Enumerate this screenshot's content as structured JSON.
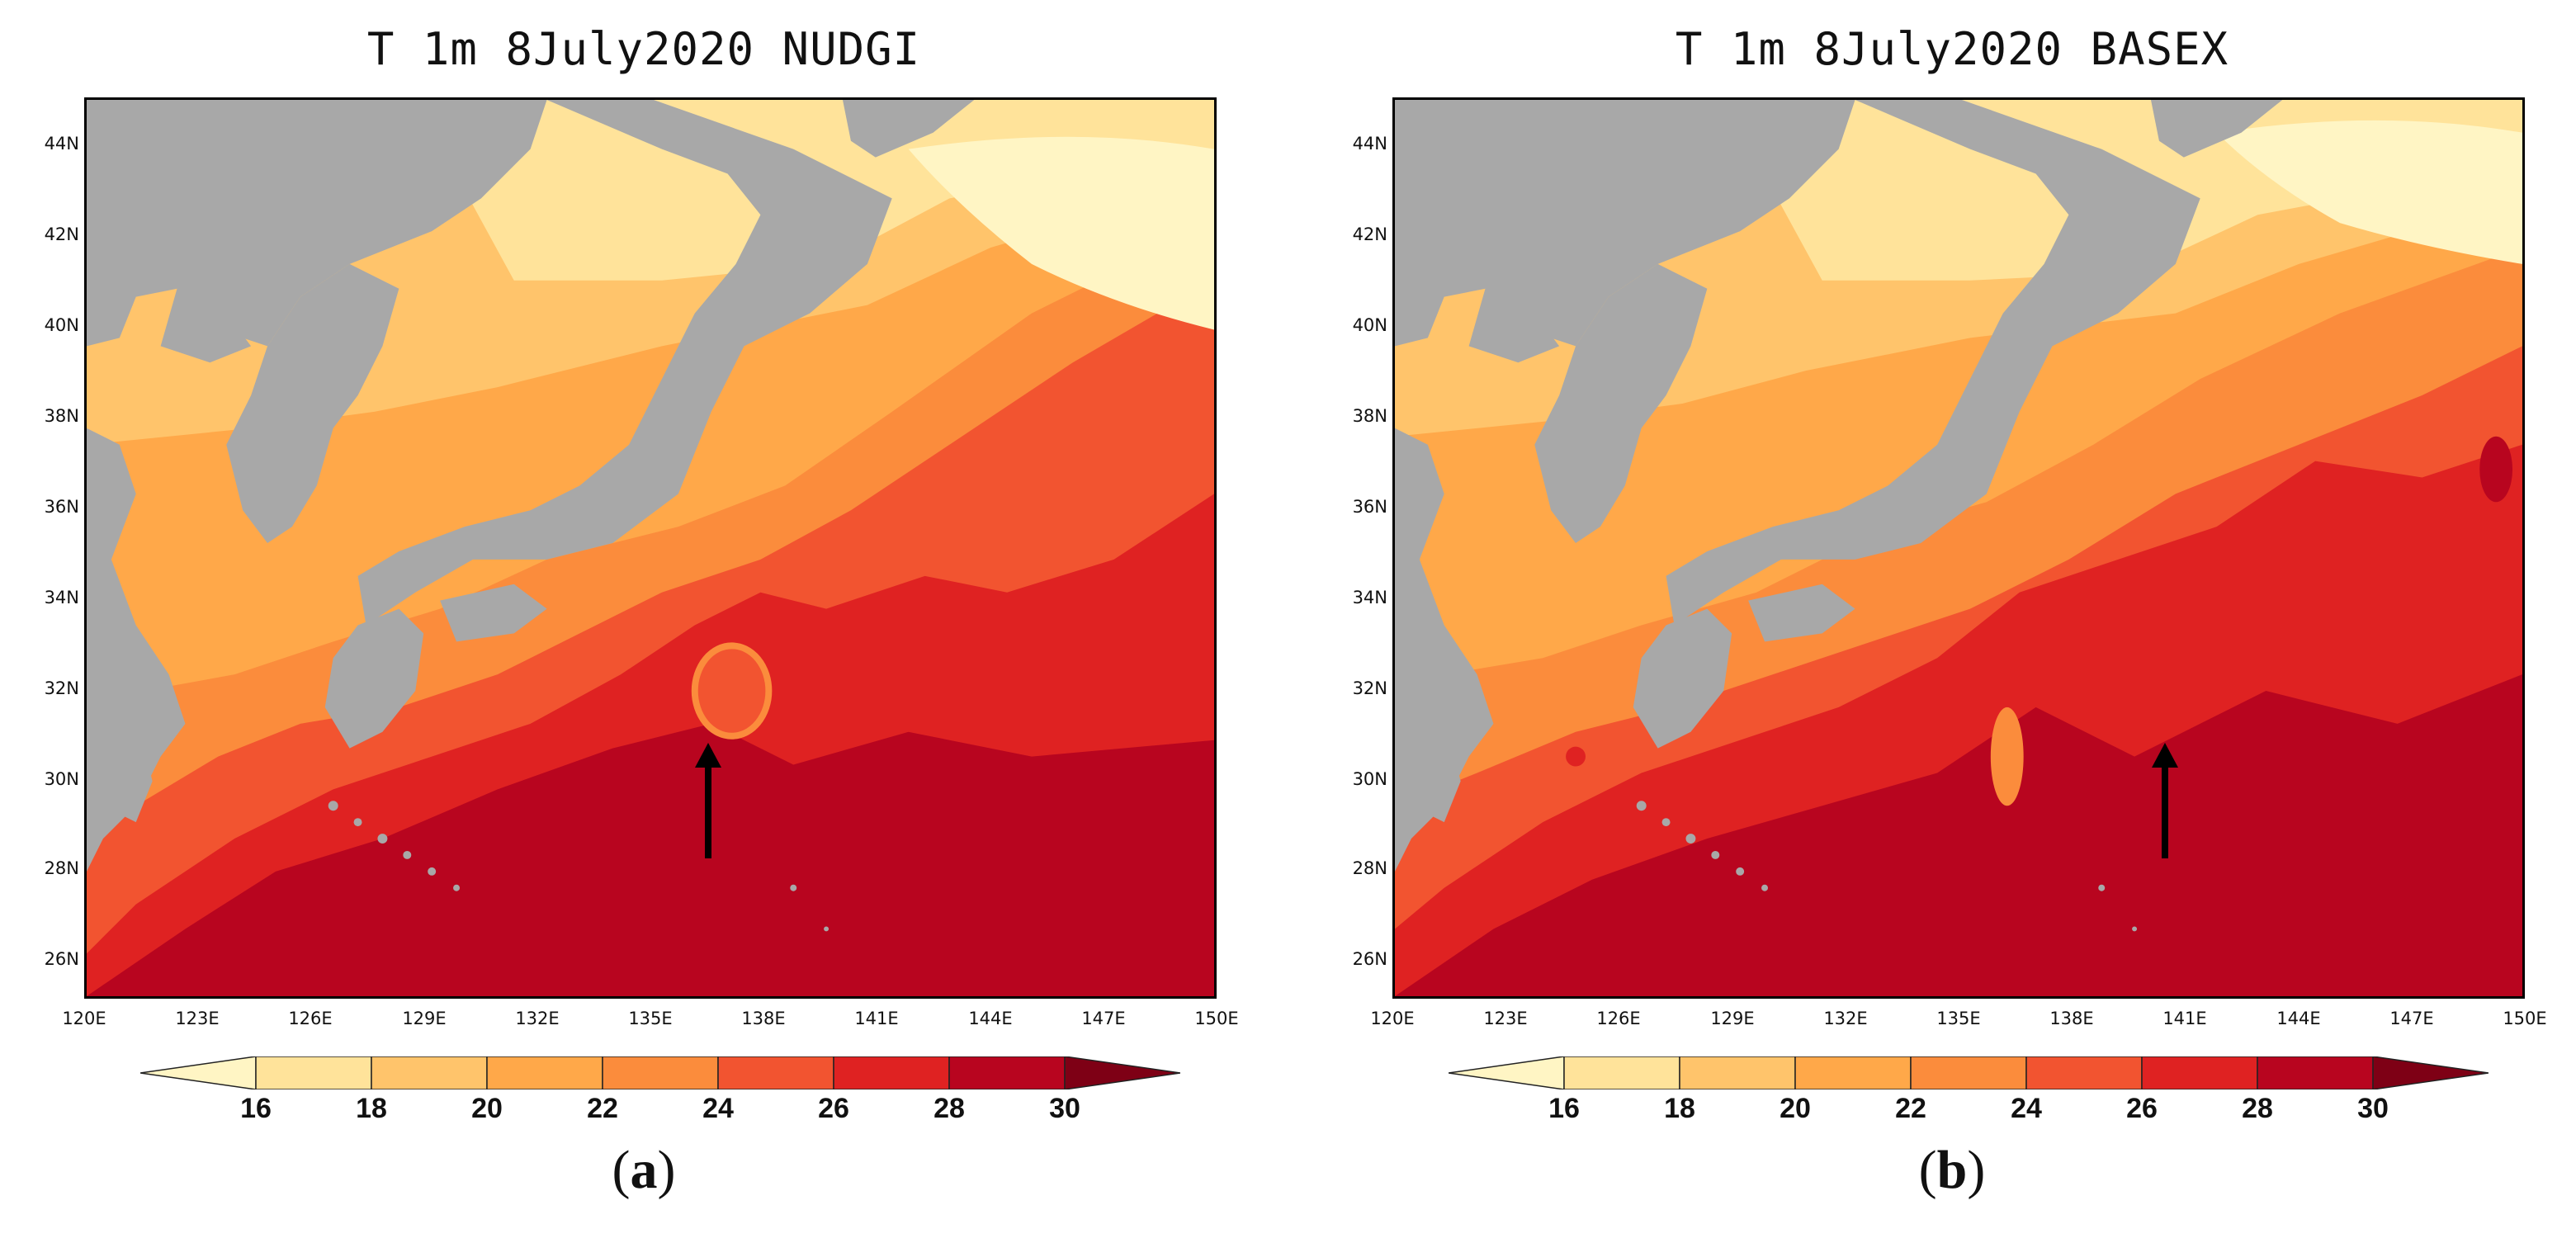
{
  "panels": [
    {
      "title": "T 1m 8July2020 NUDGI",
      "letter": "a"
    },
    {
      "title": "T 1m 8July2020 BASEX",
      "letter": "b"
    }
  ],
  "axes": {
    "y_ticks": [
      "44N",
      "42N",
      "40N",
      "38N",
      "36N",
      "34N",
      "32N",
      "30N",
      "28N",
      "26N"
    ],
    "x_ticks": [
      "120E",
      "123E",
      "126E",
      "129E",
      "132E",
      "135E",
      "138E",
      "141E",
      "144E",
      "147E",
      "150E"
    ],
    "lat_range": [
      25,
      45
    ],
    "lon_range": [
      120,
      150
    ]
  },
  "colorbar": {
    "levels": [
      "16",
      "18",
      "20",
      "22",
      "24",
      "26",
      "28",
      "30"
    ],
    "colors": [
      "#fff5c4",
      "#ffe39a",
      "#ffc46b",
      "#ffa849",
      "#fb8c3c",
      "#f25430",
      "#df2222",
      "#b8051f",
      "#7e0015"
    ],
    "land_color": "#a8a8a8"
  },
  "annotation": {
    "arrow": "arrow-icon"
  }
}
